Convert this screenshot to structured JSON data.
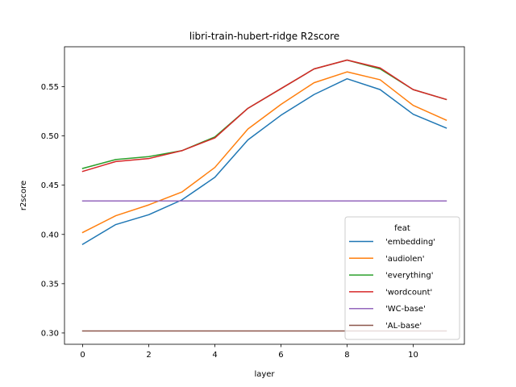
{
  "chart_data": {
    "type": "line",
    "title": "libri-train-hubert-ridge R2score",
    "xlabel": "layer",
    "ylabel": "r2score",
    "xlim": [
      -0.55,
      11.55
    ],
    "ylim": [
      0.2885,
      0.5905
    ],
    "xticks": [
      0,
      2,
      4,
      6,
      8,
      10
    ],
    "yticks": [
      0.3,
      0.35,
      0.4,
      0.45,
      0.5,
      0.55
    ],
    "ytick_labels": [
      "0.30",
      "0.35",
      "0.40",
      "0.45",
      "0.50",
      "0.55"
    ],
    "grid": false,
    "legend_title": "feat",
    "legend_position": "lower right",
    "x": [
      0,
      1,
      2,
      3,
      4,
      5,
      6,
      7,
      8,
      9,
      10,
      11
    ],
    "series": [
      {
        "name": "'embedding'",
        "color": "#1f77b4",
        "values": [
          0.39,
          0.41,
          0.42,
          0.435,
          0.458,
          0.496,
          0.521,
          0.542,
          0.558,
          0.547,
          0.522,
          0.508
        ]
      },
      {
        "name": "'audiolen'",
        "color": "#ff7f0e",
        "values": [
          0.402,
          0.419,
          0.43,
          0.443,
          0.468,
          0.507,
          0.532,
          0.554,
          0.565,
          0.557,
          0.531,
          0.516
        ]
      },
      {
        "name": "'everything'",
        "color": "#2ca02c",
        "values": [
          0.467,
          0.476,
          0.479,
          0.485,
          0.499,
          0.528,
          0.548,
          0.568,
          0.577,
          0.568,
          0.547,
          0.537
        ]
      },
      {
        "name": "'wordcount'",
        "color": "#d62728",
        "values": [
          0.464,
          0.474,
          0.477,
          0.485,
          0.498,
          0.528,
          0.548,
          0.568,
          0.577,
          0.569,
          0.547,
          0.537
        ]
      },
      {
        "name": "'WC-base'",
        "color": "#9467bd",
        "values": [
          0.434,
          0.434,
          0.434,
          0.434,
          0.434,
          0.434,
          0.434,
          0.434,
          0.434,
          0.434,
          0.434,
          0.434
        ]
      },
      {
        "name": "'AL-base'",
        "color": "#8c564b",
        "values": [
          0.302,
          0.302,
          0.302,
          0.302,
          0.302,
          0.302,
          0.302,
          0.302,
          0.302,
          0.302,
          0.302,
          0.302
        ]
      }
    ]
  }
}
